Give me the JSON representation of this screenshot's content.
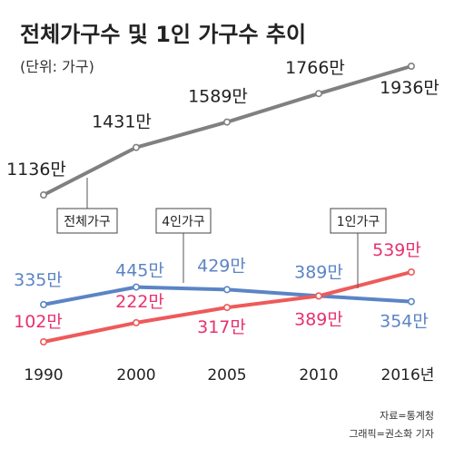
{
  "chart_data": {
    "type": "line",
    "title": "전체가구수 및 1인 가구수 추이",
    "unit_label": "(단위: 가구)",
    "x": [
      "1990",
      "2000",
      "2005",
      "2010",
      "2016년"
    ],
    "colors": {
      "total": "#808080",
      "four": "#5b84c4",
      "one": "#ee5a5a",
      "one_label": "#e8316e",
      "four_label": "#5b84c4",
      "total_label": "#222222"
    },
    "series": [
      {
        "key": "total",
        "name": "전체가구",
        "values": [
          1136,
          1431,
          1589,
          1766,
          1936
        ],
        "labels": [
          "1136만",
          "1431만",
          "1589만",
          "1766만",
          "1936만"
        ]
      },
      {
        "key": "four",
        "name": "4인가구",
        "values": [
          335,
          445,
          429,
          389,
          354
        ],
        "labels": [
          "335만",
          "445만",
          "429만",
          "389만",
          "354만"
        ]
      },
      {
        "key": "one",
        "name": "1인가구",
        "values": [
          102,
          222,
          317,
          389,
          539
        ],
        "labels": [
          "102만",
          "222만",
          "317만",
          "389만",
          "539만"
        ]
      }
    ]
  },
  "credits": {
    "source": "자료=통계청",
    "graphic": "그래픽=권소화 기자"
  }
}
